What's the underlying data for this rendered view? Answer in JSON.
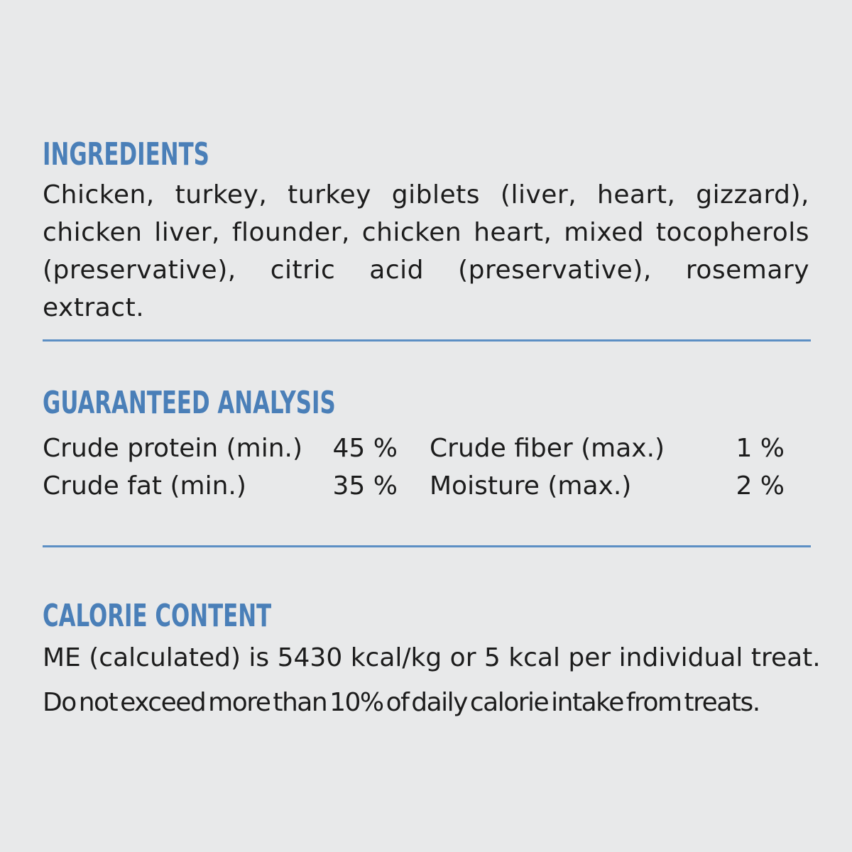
{
  "ingredients": {
    "heading": "INGREDIENTS",
    "text": "Chicken, turkey, turkey giblets (liver, heart, gizzard), chicken liver, flounder, chicken heart, mixed tocopherols (preservative), citric acid (preservative), rosemary extract."
  },
  "analysis": {
    "heading": "GUARANTEED ANALYSIS",
    "rows": [
      {
        "left_label": "Crude protein (min.)",
        "left_value": "45 %",
        "right_label": "Crude fiber (max.)",
        "right_value": "1 %"
      },
      {
        "left_label": "Crude fat (min.)",
        "left_value": "35 %",
        "right_label": "Moisture (max.)",
        "right_value": "2 %"
      }
    ]
  },
  "calorie": {
    "heading": "CALORIE CONTENT",
    "line1": "ME (calculated) is 5430 kcal/kg or 5 kcal per individual treat.",
    "line2": "Do not exceed more than 10% of daily calorie intake from treats."
  },
  "colors": {
    "background": "#e8e9ea",
    "heading": "#4a7fb8",
    "divider": "#5c8fc4",
    "text": "#1c1c1c"
  }
}
